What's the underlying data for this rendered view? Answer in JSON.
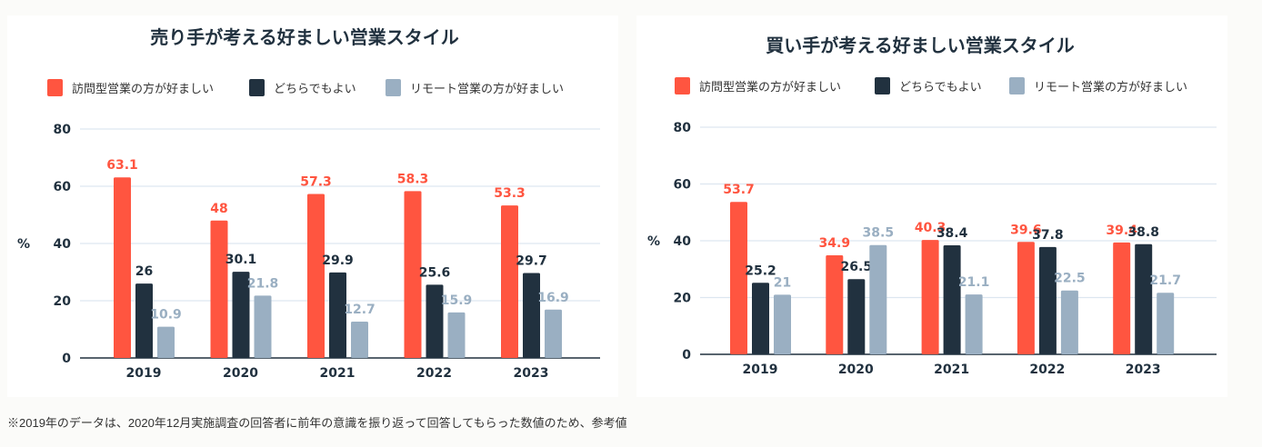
{
  "colors": {
    "visit": "#ff5540",
    "either": "#21313f",
    "remote": "#9aafc2",
    "grid": "#dde6f0",
    "text": "#21313f"
  },
  "chart_data": [
    {
      "type": "bar",
      "title": "売り手が考える好ましい営業スタイル",
      "ylabel": "%",
      "ylim": [
        0,
        80
      ],
      "yticks": [
        "0",
        "20",
        "40",
        "60",
        "80"
      ],
      "grid": true,
      "legend_position": "top",
      "categories": [
        "2019",
        "2020",
        "2021",
        "2022",
        "2023"
      ],
      "series": [
        {
          "name": "訪問型営業の方が好ましい",
          "values": [
            63.1,
            48,
            57.3,
            58.3,
            53.3
          ]
        },
        {
          "name": "どちらでもよい",
          "values": [
            26,
            30.1,
            29.9,
            25.6,
            29.7
          ]
        },
        {
          "name": "リモート営業の方が好ましい",
          "values": [
            10.9,
            21.8,
            12.7,
            15.9,
            16.9
          ]
        }
      ]
    },
    {
      "type": "bar",
      "title": "買い手が考える好ましい営業スタイル",
      "ylabel": "%",
      "ylim": [
        0,
        80
      ],
      "yticks": [
        "0",
        "20",
        "40",
        "60",
        "80"
      ],
      "grid": true,
      "legend_position": "top",
      "categories": [
        "2019",
        "2020",
        "2021",
        "2022",
        "2023"
      ],
      "series": [
        {
          "name": "訪問型営業の方が好ましい",
          "values": [
            53.7,
            34.9,
            40.3,
            39.6,
            39.4
          ]
        },
        {
          "name": "どちらでもよい",
          "values": [
            25.2,
            26.5,
            38.4,
            37.8,
            38.8
          ]
        },
        {
          "name": "リモート営業の方が好ましい",
          "values": [
            21,
            38.5,
            21.1,
            22.5,
            21.7
          ]
        }
      ]
    }
  ],
  "footnote": "※2019年のデータは、2020年12月実施調査の回答者に前年の意識を振り返って回答してもらった数値のため、参考値"
}
